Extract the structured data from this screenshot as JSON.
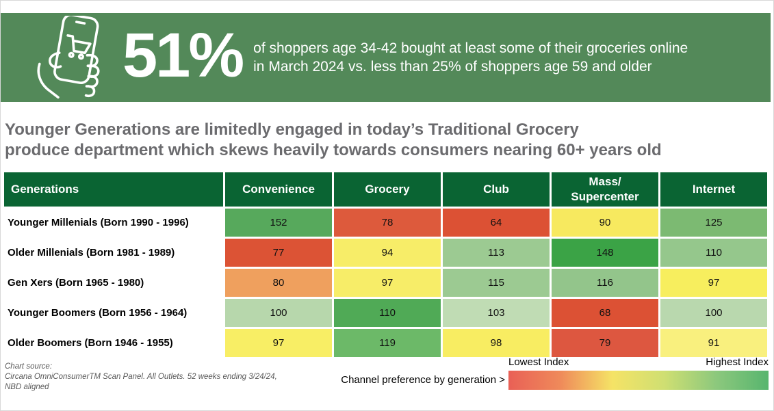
{
  "banner": {
    "bg_color": "#538959",
    "icon": "hand-holding-phone-shopping-cart-icon",
    "stat": "51%",
    "description_line1": "of shoppers age 34-42 bought at least some of their groceries online",
    "description_line2": "in March 2024 vs. less than 25% of shoppers age 59 and older"
  },
  "headline": {
    "color": "#6b6b6e",
    "line1": "Younger Generations are limitedly engaged in today’s Traditional Grocery",
    "line2": "produce department which skews heavily towards consumers nearing 60+ years old"
  },
  "chart_data": {
    "type": "heatmap",
    "title": "Younger Generations are limitedly engaged in today’s Traditional Grocery produce department which skews heavily towards consumers nearing 60+ years old",
    "row_header": "Generations",
    "header_bg": "#0a6433",
    "columns": [
      "Convenience",
      "Grocery",
      "Club",
      "Mass/\nSupercenter",
      "Internet"
    ],
    "rows": [
      {
        "label": "Younger Millenials (Born 1990 - 1996)",
        "values": [
          152,
          78,
          64,
          90,
          125
        ],
        "colors": [
          "#57a95c",
          "#dd5a3c",
          "#dc5134",
          "#f7e95f",
          "#7cba72"
        ]
      },
      {
        "label": "Older Millenials (Born 1981 - 1989)",
        "values": [
          77,
          94,
          113,
          148,
          110
        ],
        "colors": [
          "#dc5335",
          "#f7ed68",
          "#9cca92",
          "#3ba346",
          "#95c78c"
        ]
      },
      {
        "label": "Gen Xers (Born 1965 - 1980)",
        "values": [
          80,
          97,
          115,
          116,
          97
        ],
        "colors": [
          "#efa05e",
          "#f7ed68",
          "#9cca92",
          "#93c58b",
          "#f7ee5e"
        ]
      },
      {
        "label": "Younger Boomers (Born 1956 - 1964)",
        "values": [
          100,
          110,
          103,
          68,
          100
        ],
        "colors": [
          "#b7d7ac",
          "#50aa56",
          "#c0dcb4",
          "#dc5134",
          "#b9d8ae"
        ]
      },
      {
        "label": "Older Boomers (Born 1946 - 1955)",
        "values": [
          97,
          119,
          98,
          79,
          91
        ],
        "colors": [
          "#f8ee65",
          "#6cb968",
          "#f8ed62",
          "#dd5740",
          "#f9f07e"
        ]
      }
    ],
    "legend": {
      "low_label": "Lowest Index",
      "high_label": "Highest Index",
      "gradient": [
        "#e96056",
        "#ef8a5a",
        "#f5e366",
        "#cfdf72",
        "#8cc87d",
        "#57b56e"
      ]
    }
  },
  "footer": {
    "source_line1": "Chart source:",
    "source_line2": "Circana OmniConsumerTM Scan Panel. All Outlets. 52 weeks ending 3/24/24,",
    "source_line3": "NBD aligned",
    "legend_caption": "Channel preference by generation >"
  }
}
